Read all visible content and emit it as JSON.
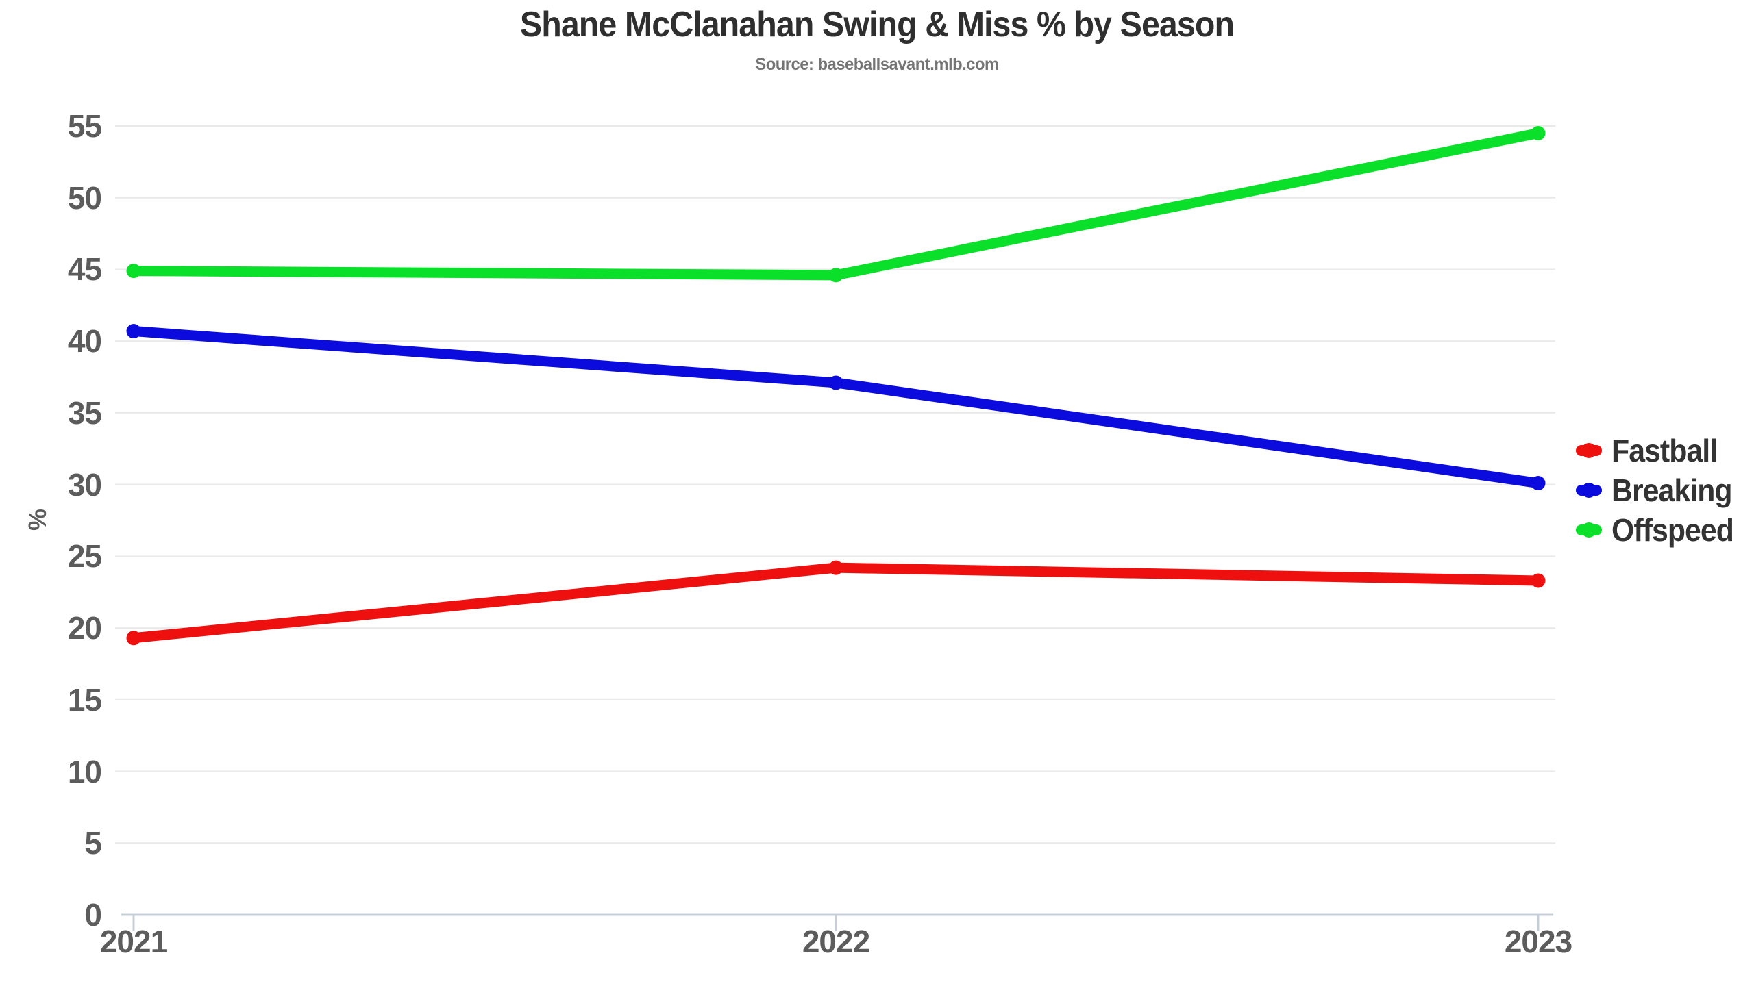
{
  "header": {
    "title": "Shane McClanahan Swing & Miss % by Season",
    "subtitle": "Source: baseballsavant.mlb.com"
  },
  "chart_data": {
    "type": "line",
    "categories": [
      "2021",
      "2022",
      "2023"
    ],
    "series": [
      {
        "name": "Fastball",
        "color": "#ee0f0f",
        "values": [
          19.3,
          24.2,
          23.3
        ]
      },
      {
        "name": "Breaking",
        "color": "#0b0bdd",
        "values": [
          40.7,
          37.1,
          30.1
        ]
      },
      {
        "name": "Offspeed",
        "color": "#0ae02a",
        "values": [
          44.9,
          44.6,
          54.5
        ]
      }
    ],
    "title": "Shane McClanahan Swing & Miss % by Season",
    "subtitle": "Source: baseballsavant.mlb.com",
    "xlabel": "",
    "ylabel": "%",
    "ylim": [
      0,
      57
    ],
    "yticks": [
      0,
      5,
      10,
      15,
      20,
      25,
      30,
      35,
      40,
      45,
      50,
      55
    ],
    "grid": true,
    "legend_position": "right",
    "grid_color": "#e9e9e9",
    "axis_color": "#c6cfd8"
  }
}
